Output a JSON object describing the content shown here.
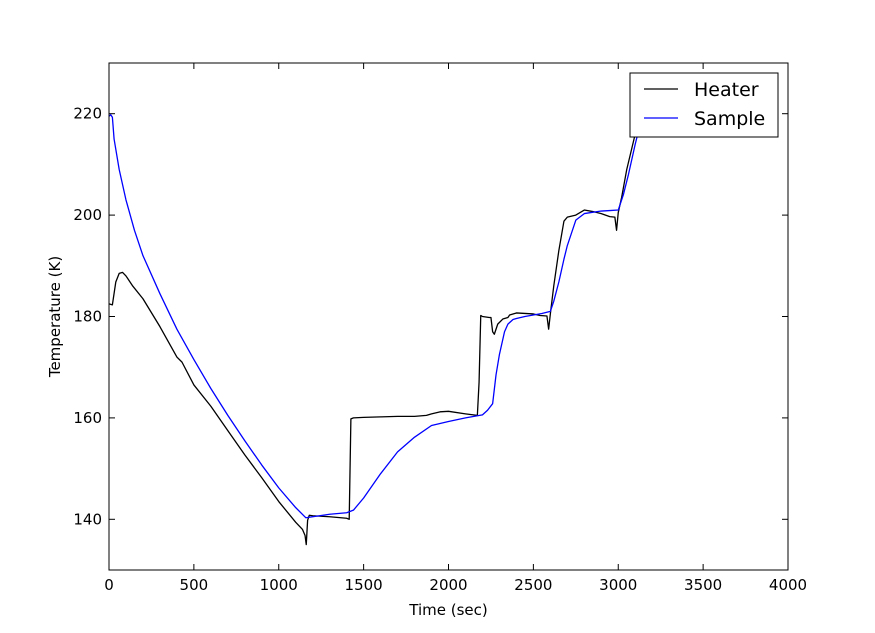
{
  "chart_data": {
    "type": "line",
    "title": "",
    "xlabel": "Time (sec)",
    "ylabel": "Temperature (K)",
    "xlim": [
      0,
      4000
    ],
    "ylim": [
      130,
      230
    ],
    "xticks": [
      0,
      500,
      1000,
      1500,
      2000,
      2500,
      3000,
      3500,
      4000
    ],
    "yticks": [
      140,
      160,
      180,
      200,
      220
    ],
    "xtick_labels": [
      "0",
      "500",
      "1000",
      "1500",
      "2000",
      "2500",
      "3000",
      "3500",
      "4000"
    ],
    "ytick_labels": [
      "140",
      "160",
      "180",
      "200",
      "220"
    ],
    "grid": false,
    "legend_position": "top-right",
    "series": [
      {
        "name": "Heater",
        "color": "#000000",
        "x": [
          0,
          20,
          40,
          60,
          80,
          100,
          140,
          200,
          300,
          400,
          430,
          500,
          600,
          700,
          800,
          900,
          1000,
          1100,
          1140,
          1155,
          1162,
          1170,
          1180,
          1200,
          1300,
          1400,
          1415,
          1425,
          1440,
          1500,
          1600,
          1700,
          1800,
          1870,
          1900,
          1950,
          2000,
          2100,
          2170,
          2180,
          2190,
          2200,
          2240,
          2250,
          2260,
          2270,
          2290,
          2320,
          2350,
          2360,
          2380,
          2400,
          2450,
          2500,
          2540,
          2580,
          2590,
          2600,
          2620,
          2650,
          2680,
          2700,
          2750,
          2800,
          2850,
          2900,
          2950,
          2980,
          2990,
          3000,
          3020,
          3050,
          3100,
          3130
        ],
        "y": [
          182.5,
          182.3,
          186.8,
          188.5,
          188.7,
          188.0,
          186.0,
          183.5,
          178.0,
          172.0,
          171.0,
          166.5,
          162.3,
          157.5,
          152.7,
          148.2,
          143.5,
          139.4,
          138.0,
          136.8,
          135.0,
          139.8,
          140.8,
          140.7,
          140.5,
          140.2,
          140.0,
          159.8,
          160.0,
          160.1,
          160.2,
          160.3,
          160.3,
          160.5,
          160.8,
          161.2,
          161.3,
          160.8,
          160.5,
          167.0,
          180.2,
          180.0,
          179.8,
          179.8,
          177.0,
          176.5,
          178.5,
          179.5,
          179.8,
          180.3,
          180.5,
          180.7,
          180.6,
          180.5,
          180.2,
          180.1,
          177.5,
          180.5,
          186.0,
          193.0,
          198.8,
          199.6,
          200.0,
          201.0,
          200.7,
          200.3,
          199.7,
          199.6,
          197.0,
          200.5,
          203.5,
          209.0,
          216.0,
          220.0
        ]
      },
      {
        "name": "Sample",
        "color": "#0000ff",
        "x": [
          0,
          10,
          20,
          30,
          60,
          100,
          150,
          200,
          300,
          400,
          500,
          600,
          700,
          800,
          900,
          1000,
          1100,
          1160,
          1200,
          1300,
          1400,
          1440,
          1500,
          1600,
          1700,
          1800,
          1900,
          2000,
          2100,
          2150,
          2200,
          2230,
          2260,
          2280,
          2300,
          2330,
          2350,
          2380,
          2400,
          2450,
          2500,
          2550,
          2600,
          2620,
          2650,
          2680,
          2700,
          2750,
          2800,
          2900,
          2950,
          3000,
          3030,
          3060,
          3100,
          3130
        ],
        "y": [
          219.5,
          219.8,
          219.3,
          215.0,
          209.0,
          203.0,
          197.0,
          192.0,
          184.5,
          177.5,
          171.5,
          165.8,
          160.5,
          155.5,
          150.7,
          146.2,
          142.3,
          140.3,
          140.5,
          141.0,
          141.3,
          141.8,
          144.2,
          149.0,
          153.3,
          156.2,
          158.5,
          159.3,
          160.0,
          160.3,
          160.6,
          161.5,
          162.8,
          168.5,
          172.5,
          177.0,
          178.5,
          179.4,
          179.6,
          180.0,
          180.3,
          180.6,
          181.0,
          183.0,
          186.8,
          191.3,
          194.0,
          199.0,
          200.3,
          200.8,
          200.9,
          201.0,
          204.0,
          208.0,
          214.0,
          218.0
        ]
      }
    ]
  }
}
